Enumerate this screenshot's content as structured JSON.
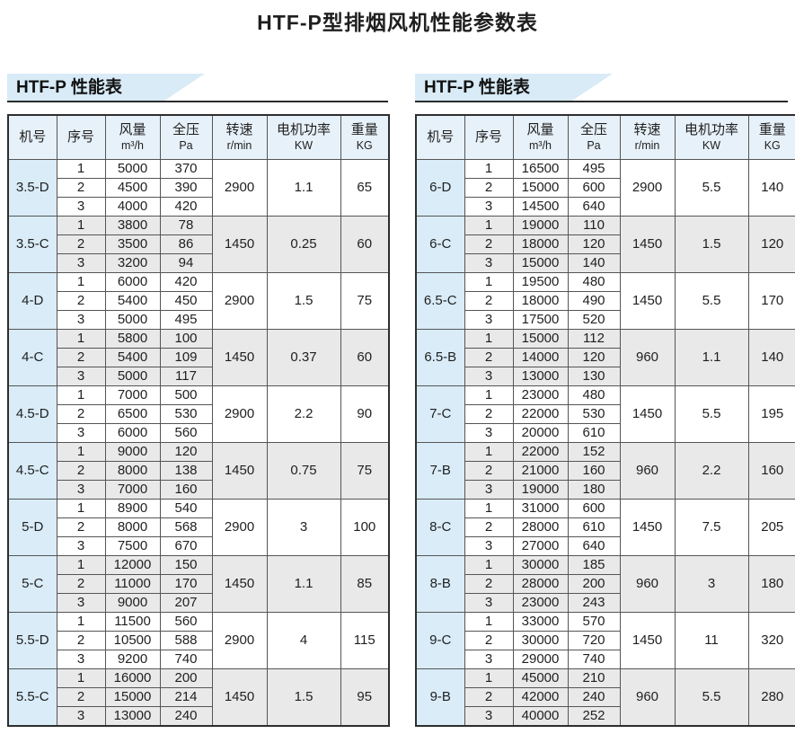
{
  "title": "HTF-P型排烟风机性能参数表",
  "columns": [
    {
      "label": "机号",
      "unit": ""
    },
    {
      "label": "序号",
      "unit": ""
    },
    {
      "label": "风量",
      "unit": "m³/h"
    },
    {
      "label": "全压",
      "unit": "Pa"
    },
    {
      "label": "转速",
      "unit": "r/min"
    },
    {
      "label": "电机功率",
      "unit": "KW"
    },
    {
      "label": "重量",
      "unit": "KG"
    }
  ],
  "colors": {
    "accent_blue": "#d8ebf7",
    "header_blue": "#e7f1f9",
    "model_column_blue": "#d9ecf8",
    "alt_row_gray": "#e9e9e9",
    "border_dark": "#2e2e2e"
  },
  "sections": [
    {
      "heading": "HTF-P 性能表",
      "groups": [
        {
          "model": "3.5-D",
          "rows": [
            [
              "1",
              "5000",
              "370"
            ],
            [
              "2",
              "4500",
              "390"
            ],
            [
              "3",
              "4000",
              "420"
            ]
          ],
          "speed": "2900",
          "power": "1.1",
          "weight": "65"
        },
        {
          "model": "3.5-C",
          "rows": [
            [
              "1",
              "3800",
              "78"
            ],
            [
              "2",
              "3500",
              "86"
            ],
            [
              "3",
              "3200",
              "94"
            ]
          ],
          "speed": "1450",
          "power": "0.25",
          "weight": "60"
        },
        {
          "model": "4-D",
          "rows": [
            [
              "1",
              "6000",
              "420"
            ],
            [
              "2",
              "5400",
              "450"
            ],
            [
              "3",
              "5000",
              "495"
            ]
          ],
          "speed": "2900",
          "power": "1.5",
          "weight": "75"
        },
        {
          "model": "4-C",
          "rows": [
            [
              "1",
              "5800",
              "100"
            ],
            [
              "2",
              "5400",
              "109"
            ],
            [
              "3",
              "5000",
              "117"
            ]
          ],
          "speed": "1450",
          "power": "0.37",
          "weight": "60"
        },
        {
          "model": "4.5-D",
          "rows": [
            [
              "1",
              "7000",
              "500"
            ],
            [
              "2",
              "6500",
              "530"
            ],
            [
              "3",
              "6000",
              "560"
            ]
          ],
          "speed": "2900",
          "power": "2.2",
          "weight": "90"
        },
        {
          "model": "4.5-C",
          "rows": [
            [
              "1",
              "9000",
              "120"
            ],
            [
              "2",
              "8000",
              "138"
            ],
            [
              "3",
              "7000",
              "160"
            ]
          ],
          "speed": "1450",
          "power": "0.75",
          "weight": "75"
        },
        {
          "model": "5-D",
          "rows": [
            [
              "1",
              "8900",
              "540"
            ],
            [
              "2",
              "8000",
              "568"
            ],
            [
              "3",
              "7500",
              "670"
            ]
          ],
          "speed": "2900",
          "power": "3",
          "weight": "100"
        },
        {
          "model": "5-C",
          "rows": [
            [
              "1",
              "12000",
              "150"
            ],
            [
              "2",
              "11000",
              "170"
            ],
            [
              "3",
              "9000",
              "207"
            ]
          ],
          "speed": "1450",
          "power": "1.1",
          "weight": "85"
        },
        {
          "model": "5.5-D",
          "rows": [
            [
              "1",
              "11500",
              "560"
            ],
            [
              "2",
              "10500",
              "588"
            ],
            [
              "3",
              "9200",
              "740"
            ]
          ],
          "speed": "2900",
          "power": "4",
          "weight": "115"
        },
        {
          "model": "5.5-C",
          "rows": [
            [
              "1",
              "16000",
              "200"
            ],
            [
              "2",
              "15000",
              "214"
            ],
            [
              "3",
              "13000",
              "240"
            ]
          ],
          "speed": "1450",
          "power": "1.5",
          "weight": "95"
        }
      ]
    },
    {
      "heading": "HTF-P 性能表",
      "groups": [
        {
          "model": "6-D",
          "rows": [
            [
              "1",
              "16500",
              "495"
            ],
            [
              "2",
              "15000",
              "600"
            ],
            [
              "3",
              "14500",
              "640"
            ]
          ],
          "speed": "2900",
          "power": "5.5",
          "weight": "140"
        },
        {
          "model": "6-C",
          "rows": [
            [
              "1",
              "19000",
              "110"
            ],
            [
              "2",
              "18000",
              "120"
            ],
            [
              "3",
              "15000",
              "140"
            ]
          ],
          "speed": "1450",
          "power": "1.5",
          "weight": "120"
        },
        {
          "model": "6.5-C",
          "rows": [
            [
              "1",
              "19500",
              "480"
            ],
            [
              "2",
              "18000",
              "490"
            ],
            [
              "3",
              "17500",
              "520"
            ]
          ],
          "speed": "1450",
          "power": "5.5",
          "weight": "170"
        },
        {
          "model": "6.5-B",
          "rows": [
            [
              "1",
              "15000",
              "112"
            ],
            [
              "2",
              "14000",
              "120"
            ],
            [
              "3",
              "13000",
              "130"
            ]
          ],
          "speed": "960",
          "power": "1.1",
          "weight": "140"
        },
        {
          "model": "7-C",
          "rows": [
            [
              "1",
              "23000",
              "480"
            ],
            [
              "2",
              "22000",
              "530"
            ],
            [
              "3",
              "20000",
              "610"
            ]
          ],
          "speed": "1450",
          "power": "5.5",
          "weight": "195"
        },
        {
          "model": "7-B",
          "rows": [
            [
              "1",
              "22000",
              "152"
            ],
            [
              "2",
              "21000",
              "160"
            ],
            [
              "3",
              "19000",
              "180"
            ]
          ],
          "speed": "960",
          "power": "2.2",
          "weight": "160"
        },
        {
          "model": "8-C",
          "rows": [
            [
              "1",
              "31000",
              "600"
            ],
            [
              "2",
              "28000",
              "610"
            ],
            [
              "3",
              "27000",
              "640"
            ]
          ],
          "speed": "1450",
          "power": "7.5",
          "weight": "205"
        },
        {
          "model": "8-B",
          "rows": [
            [
              "1",
              "30000",
              "185"
            ],
            [
              "2",
              "28000",
              "200"
            ],
            [
              "3",
              "23000",
              "243"
            ]
          ],
          "speed": "960",
          "power": "3",
          "weight": "180"
        },
        {
          "model": "9-C",
          "rows": [
            [
              "1",
              "33000",
              "570"
            ],
            [
              "2",
              "30000",
              "720"
            ],
            [
              "3",
              "29000",
              "740"
            ]
          ],
          "speed": "1450",
          "power": "11",
          "weight": "320"
        },
        {
          "model": "9-B",
          "rows": [
            [
              "1",
              "45000",
              "210"
            ],
            [
              "2",
              "42000",
              "240"
            ],
            [
              "3",
              "40000",
              "252"
            ]
          ],
          "speed": "960",
          "power": "5.5",
          "weight": "280"
        }
      ]
    }
  ]
}
